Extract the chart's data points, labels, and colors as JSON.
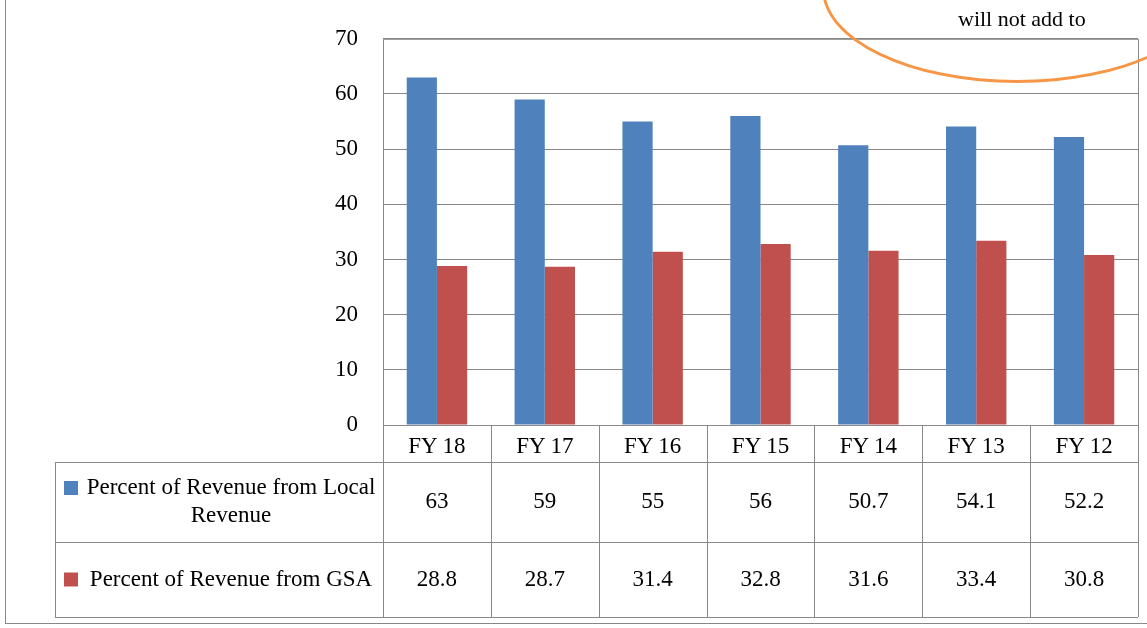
{
  "chart_data": {
    "type": "bar",
    "categories": [
      "FY 18",
      "FY 17",
      "FY 16",
      "FY 15",
      "FY 14",
      "FY 13",
      "FY 12"
    ],
    "series": [
      {
        "name": "Percent of Revenue from Local Revenue",
        "color": "#4f81bd",
        "values": [
          63,
          59,
          55,
          56,
          50.7,
          54.1,
          52.2
        ]
      },
      {
        "name": "Percent of Revenue from GSA",
        "color": "#c0504d",
        "values": [
          28.8,
          28.7,
          31.4,
          32.8,
          31.6,
          33.4,
          30.8
        ]
      }
    ],
    "ylim": [
      0,
      70
    ],
    "yticks": [
      0,
      10,
      20,
      30,
      40,
      50,
      60,
      70
    ],
    "grid": "y",
    "legend": "bottom",
    "data_labels": true,
    "annotations": [
      "will not add to"
    ]
  }
}
